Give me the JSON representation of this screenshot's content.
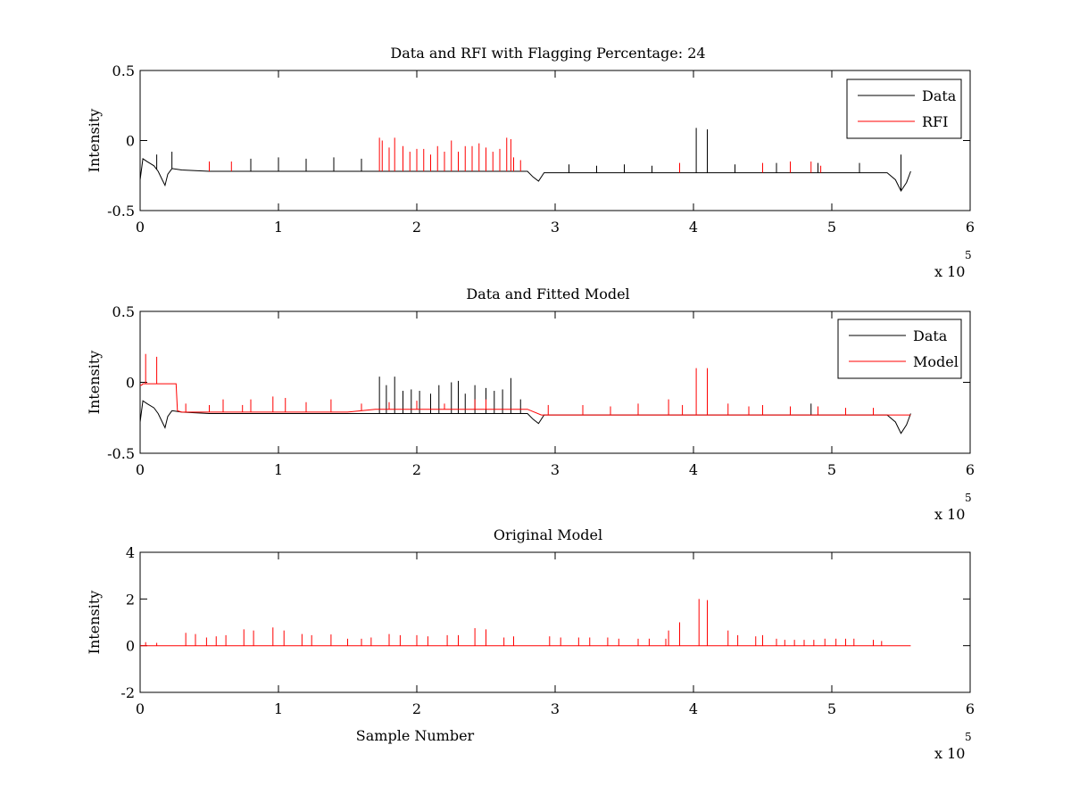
{
  "colors": {
    "data": "#000000",
    "rfi": "#ff0000",
    "model": "#ff0000"
  },
  "chart_data": [
    {
      "type": "line",
      "title": "Data and RFI with Flagging Percentage: 24",
      "xlabel": "",
      "ylabel": "Intensity",
      "xlim": [
        0,
        6
      ],
      "ylim": [
        -0.5,
        0.5
      ],
      "xticks": [
        "0",
        "1",
        "2",
        "3",
        "4",
        "5",
        "6"
      ],
      "yticks": [
        "-0.5",
        "0",
        "0.5"
      ],
      "x_multiplier": "x 10",
      "x_multiplier_exponent": "5",
      "legend_position": "top-right",
      "series": [
        {
          "name": "Data",
          "color": "#000000",
          "x": [
            0,
            0.02,
            0.05,
            0.1,
            0.13,
            0.16,
            0.18,
            0.2,
            0.23,
            0.3,
            0.5,
            1.0,
            1.5,
            1.7,
            2.0,
            2.5,
            2.8,
            2.84,
            2.88,
            2.92,
            3.0,
            3.5,
            4.0,
            4.5,
            5.0,
            5.4,
            5.46,
            5.5,
            5.54,
            5.57
          ],
          "y": [
            -0.28,
            -0.13,
            -0.15,
            -0.18,
            -0.22,
            -0.28,
            -0.32,
            -0.24,
            -0.2,
            -0.21,
            -0.22,
            -0.22,
            -0.22,
            -0.22,
            -0.22,
            -0.22,
            -0.22,
            -0.26,
            -0.29,
            -0.23,
            -0.23,
            -0.23,
            -0.23,
            -0.23,
            -0.23,
            -0.23,
            -0.28,
            -0.36,
            -0.3,
            -0.22
          ],
          "spikes_x": [
            0.12,
            0.23,
            0.5,
            0.8,
            1.0,
            1.2,
            1.4,
            1.6,
            3.1,
            3.3,
            3.5,
            3.7,
            3.9,
            4.02,
            4.1,
            4.3,
            4.6,
            4.9,
            5.2,
            5.5
          ],
          "spikes_y": [
            -0.1,
            -0.08,
            -0.15,
            -0.13,
            -0.12,
            -0.13,
            -0.12,
            -0.13,
            -0.17,
            -0.18,
            -0.17,
            -0.18,
            -0.17,
            0.09,
            0.08,
            -0.17,
            -0.16,
            -0.16,
            -0.16,
            -0.1
          ]
        },
        {
          "name": "RFI",
          "color": "#ff0000",
          "x": [
            1.73,
            1.75,
            1.8,
            1.84,
            1.9,
            1.95,
            2.0,
            2.05,
            2.1,
            2.15,
            2.2,
            2.25,
            2.3,
            2.35,
            2.4,
            2.45,
            2.5,
            2.55,
            2.6,
            2.65,
            2.68,
            2.7,
            2.75,
            0.5,
            0.66,
            3.9,
            4.5,
            4.7,
            4.85,
            4.92
          ],
          "y": [
            0.02,
            0.0,
            -0.05,
            0.02,
            -0.04,
            -0.08,
            -0.06,
            -0.06,
            -0.1,
            -0.04,
            -0.08,
            0.0,
            -0.08,
            -0.04,
            -0.04,
            -0.02,
            -0.05,
            -0.08,
            -0.06,
            0.02,
            0.01,
            -0.12,
            -0.14,
            -0.15,
            -0.15,
            -0.16,
            -0.16,
            -0.15,
            -0.15,
            -0.18
          ]
        }
      ]
    },
    {
      "type": "line",
      "title": "Data and Fitted Model",
      "xlabel": "",
      "ylabel": "Intensity",
      "xlim": [
        0,
        6
      ],
      "ylim": [
        -0.5,
        0.5
      ],
      "xticks": [
        "0",
        "1",
        "2",
        "3",
        "4",
        "5",
        "6"
      ],
      "yticks": [
        "-0.5",
        "0",
        "0.5"
      ],
      "x_multiplier": "x 10",
      "x_multiplier_exponent": "5",
      "legend_position": "top-right",
      "series": [
        {
          "name": "Data",
          "color": "#000000",
          "x": [
            0,
            0.02,
            0.05,
            0.1,
            0.13,
            0.16,
            0.18,
            0.2,
            0.23,
            0.3,
            0.5,
            1.0,
            1.5,
            1.7,
            2.0,
            2.5,
            2.8,
            2.84,
            2.88,
            2.92,
            3.0,
            3.5,
            4.0,
            4.5,
            5.0,
            5.4,
            5.46,
            5.5,
            5.54,
            5.57
          ],
          "y": [
            -0.28,
            -0.13,
            -0.15,
            -0.18,
            -0.22,
            -0.28,
            -0.32,
            -0.24,
            -0.2,
            -0.21,
            -0.22,
            -0.22,
            -0.22,
            -0.22,
            -0.22,
            -0.22,
            -0.22,
            -0.26,
            -0.29,
            -0.23,
            -0.23,
            -0.23,
            -0.23,
            -0.23,
            -0.23,
            -0.23,
            -0.28,
            -0.36,
            -0.3,
            -0.22
          ],
          "spikes_x": [
            1.73,
            1.78,
            1.84,
            1.9,
            1.96,
            2.02,
            2.1,
            2.16,
            2.25,
            2.3,
            2.35,
            2.42,
            2.5,
            2.56,
            2.62,
            2.68,
            2.75,
            4.85
          ],
          "spikes_y": [
            0.04,
            -0.02,
            0.04,
            -0.06,
            -0.05,
            -0.06,
            -0.08,
            -0.02,
            0.0,
            0.01,
            -0.08,
            -0.02,
            -0.04,
            -0.06,
            -0.05,
            0.03,
            -0.12,
            -0.15
          ]
        },
        {
          "name": "Model",
          "color": "#ff0000",
          "x": [
            0,
            0.01,
            0.02,
            0.05,
            0.1,
            0.15,
            0.2,
            0.26,
            0.27,
            0.3,
            0.5,
            1.0,
            1.5,
            1.7,
            2.0,
            2.5,
            2.8,
            2.9,
            3.0,
            3.5,
            4.0,
            4.5,
            5.0,
            5.5,
            5.57
          ],
          "y": [
            -0.02,
            -0.02,
            -0.01,
            -0.01,
            -0.01,
            -0.01,
            -0.01,
            -0.01,
            -0.2,
            -0.21,
            -0.21,
            -0.21,
            -0.21,
            -0.19,
            -0.19,
            -0.19,
            -0.19,
            -0.23,
            -0.23,
            -0.23,
            -0.23,
            -0.23,
            -0.23,
            -0.23,
            -0.23
          ],
          "spikes_x": [
            0.04,
            0.12,
            0.33,
            0.5,
            0.6,
            0.74,
            0.8,
            0.96,
            1.05,
            1.2,
            1.38,
            1.6,
            1.8,
            2.0,
            2.2,
            2.42,
            2.5,
            2.95,
            3.2,
            3.4,
            3.6,
            3.82,
            3.92,
            4.02,
            4.1,
            4.25,
            4.4,
            4.5,
            4.7,
            4.9,
            5.1,
            5.3
          ],
          "spikes_y": [
            0.2,
            0.18,
            -0.15,
            -0.16,
            -0.12,
            -0.16,
            -0.12,
            -0.1,
            -0.11,
            -0.14,
            -0.12,
            -0.15,
            -0.14,
            -0.13,
            -0.15,
            -0.12,
            -0.12,
            -0.16,
            -0.16,
            -0.17,
            -0.15,
            -0.12,
            -0.16,
            0.1,
            0.1,
            -0.15,
            -0.17,
            -0.16,
            -0.17,
            -0.17,
            -0.18,
            -0.18
          ]
        }
      ]
    },
    {
      "type": "line",
      "title": "Original Model",
      "xlabel": "Sample Number",
      "ylabel": "Intensity",
      "xlim": [
        0,
        6
      ],
      "ylim": [
        -2,
        4
      ],
      "xticks": [
        "0",
        "1",
        "2",
        "3",
        "4",
        "5",
        "6"
      ],
      "yticks": [
        "-2",
        "0",
        "2",
        "4"
      ],
      "x_multiplier": "x 10",
      "x_multiplier_exponent": "5",
      "series": [
        {
          "color": "#ff0000",
          "x": [
            0,
            5.57
          ],
          "y": [
            0,
            0
          ],
          "spikes_x": [
            0.04,
            0.12,
            0.33,
            0.4,
            0.48,
            0.55,
            0.62,
            0.75,
            0.82,
            0.96,
            1.04,
            1.17,
            1.24,
            1.38,
            1.5,
            1.6,
            1.67,
            1.8,
            1.88,
            2.0,
            2.08,
            2.22,
            2.3,
            2.42,
            2.5,
            2.63,
            2.7,
            2.96,
            3.04,
            3.17,
            3.25,
            3.38,
            3.46,
            3.6,
            3.68,
            3.8,
            3.82,
            3.9,
            4.04,
            4.1,
            4.25,
            4.32,
            4.45,
            4.5,
            4.6,
            4.66,
            4.73,
            4.8,
            4.87,
            4.95,
            5.03,
            5.1,
            5.16,
            5.3,
            5.36
          ],
          "spikes_y": [
            0.15,
            0.12,
            0.55,
            0.5,
            0.35,
            0.4,
            0.45,
            0.7,
            0.65,
            0.78,
            0.65,
            0.5,
            0.45,
            0.48,
            0.3,
            0.3,
            0.35,
            0.5,
            0.45,
            0.45,
            0.4,
            0.45,
            0.45,
            0.75,
            0.7,
            0.35,
            0.4,
            0.4,
            0.35,
            0.35,
            0.35,
            0.35,
            0.3,
            0.3,
            0.3,
            0.3,
            0.65,
            1.0,
            2.0,
            1.95,
            0.65,
            0.45,
            0.4,
            0.45,
            0.3,
            0.25,
            0.25,
            0.25,
            0.25,
            0.3,
            0.3,
            0.3,
            0.3,
            0.25,
            0.2
          ]
        }
      ]
    }
  ]
}
